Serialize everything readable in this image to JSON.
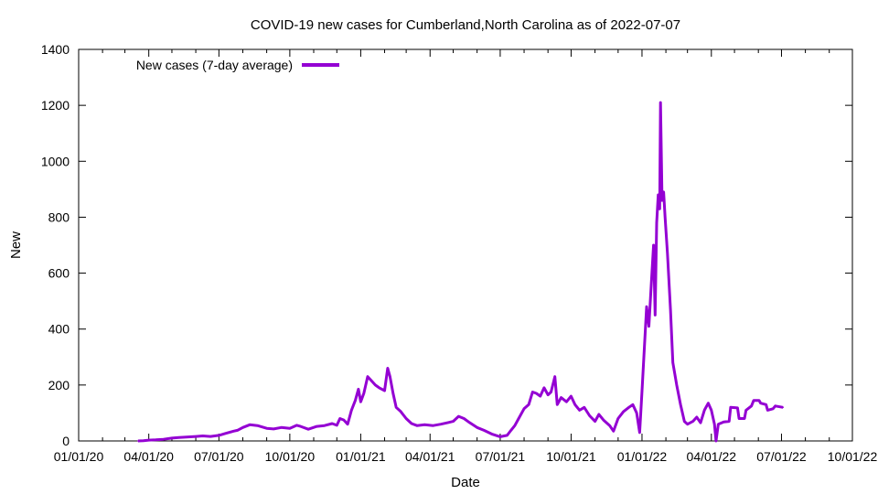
{
  "chart_data": {
    "type": "line",
    "title": "COVID-19 new cases for Cumberland,North Carolina as of 2022-07-07",
    "xlabel": "Date",
    "ylabel": "New",
    "xlim": [
      "2020-01-01",
      "2022-10-01"
    ],
    "ylim": [
      0,
      1400
    ],
    "x_tick_labels": [
      "01/01/20",
      "04/01/20",
      "07/01/20",
      "10/01/20",
      "01/01/21",
      "04/01/21",
      "07/01/21",
      "10/01/21",
      "01/01/22",
      "04/01/22",
      "07/01/22",
      "10/01/22"
    ],
    "y_tick_labels": [
      "0",
      "200",
      "400",
      "600",
      "800",
      "1000",
      "1200",
      "1400"
    ],
    "y_ticks": [
      0,
      200,
      400,
      600,
      800,
      1000,
      1200,
      1400
    ],
    "grid": false,
    "legend_position": "top-left",
    "series": [
      {
        "name": "New cases (7-day average)",
        "color": "#9400d3",
        "points": [
          [
            "2020-03-18",
            0
          ],
          [
            "2020-03-25",
            1
          ],
          [
            "2020-04-01",
            3
          ],
          [
            "2020-04-10",
            4
          ],
          [
            "2020-04-20",
            6
          ],
          [
            "2020-05-01",
            10
          ],
          [
            "2020-05-10",
            12
          ],
          [
            "2020-05-20",
            14
          ],
          [
            "2020-06-01",
            16
          ],
          [
            "2020-06-10",
            18
          ],
          [
            "2020-06-20",
            16
          ],
          [
            "2020-07-01",
            20
          ],
          [
            "2020-07-10",
            27
          ],
          [
            "2020-07-20",
            35
          ],
          [
            "2020-07-25",
            38
          ],
          [
            "2020-08-01",
            48
          ],
          [
            "2020-08-10",
            58
          ],
          [
            "2020-08-20",
            55
          ],
          [
            "2020-09-01",
            45
          ],
          [
            "2020-09-10",
            43
          ],
          [
            "2020-09-20",
            48
          ],
          [
            "2020-10-01",
            45
          ],
          [
            "2020-10-10",
            56
          ],
          [
            "2020-10-15",
            52
          ],
          [
            "2020-10-25",
            42
          ],
          [
            "2020-11-05",
            52
          ],
          [
            "2020-11-15",
            55
          ],
          [
            "2020-11-25",
            62
          ],
          [
            "2020-12-01",
            56
          ],
          [
            "2020-12-05",
            80
          ],
          [
            "2020-12-10",
            75
          ],
          [
            "2020-12-15",
            60
          ],
          [
            "2020-12-20",
            110
          ],
          [
            "2020-12-25",
            145
          ],
          [
            "2020-12-29",
            185
          ],
          [
            "2021-01-01",
            140
          ],
          [
            "2021-01-05",
            170
          ],
          [
            "2021-01-10",
            230
          ],
          [
            "2021-01-15",
            215
          ],
          [
            "2021-01-20",
            200
          ],
          [
            "2021-01-25",
            190
          ],
          [
            "2021-02-01",
            180
          ],
          [
            "2021-02-05",
            260
          ],
          [
            "2021-02-08",
            230
          ],
          [
            "2021-02-12",
            170
          ],
          [
            "2021-02-16",
            120
          ],
          [
            "2021-02-22",
            105
          ],
          [
            "2021-03-01",
            80
          ],
          [
            "2021-03-08",
            62
          ],
          [
            "2021-03-15",
            55
          ],
          [
            "2021-03-25",
            58
          ],
          [
            "2021-04-05",
            55
          ],
          [
            "2021-04-15",
            60
          ],
          [
            "2021-04-25",
            66
          ],
          [
            "2021-05-01",
            70
          ],
          [
            "2021-05-08",
            88
          ],
          [
            "2021-05-15",
            80
          ],
          [
            "2021-05-22",
            66
          ],
          [
            "2021-06-01",
            48
          ],
          [
            "2021-06-10",
            38
          ],
          [
            "2021-06-20",
            25
          ],
          [
            "2021-07-01",
            15
          ],
          [
            "2021-07-10",
            20
          ],
          [
            "2021-07-15",
            38
          ],
          [
            "2021-07-20",
            55
          ],
          [
            "2021-07-25",
            80
          ],
          [
            "2021-08-01",
            115
          ],
          [
            "2021-08-07",
            130
          ],
          [
            "2021-08-12",
            175
          ],
          [
            "2021-08-17",
            170
          ],
          [
            "2021-08-22",
            160
          ],
          [
            "2021-08-27",
            190
          ],
          [
            "2021-09-01",
            165
          ],
          [
            "2021-09-05",
            175
          ],
          [
            "2021-09-10",
            230
          ],
          [
            "2021-09-13",
            130
          ],
          [
            "2021-09-18",
            155
          ],
          [
            "2021-09-25",
            140
          ],
          [
            "2021-10-01",
            160
          ],
          [
            "2021-10-06",
            130
          ],
          [
            "2021-10-12",
            110
          ],
          [
            "2021-10-18",
            120
          ],
          [
            "2021-10-25",
            90
          ],
          [
            "2021-11-01",
            70
          ],
          [
            "2021-11-06",
            95
          ],
          [
            "2021-11-12",
            75
          ],
          [
            "2021-11-20",
            55
          ],
          [
            "2021-11-25",
            35
          ],
          [
            "2021-12-01",
            80
          ],
          [
            "2021-12-08",
            105
          ],
          [
            "2021-12-15",
            120
          ],
          [
            "2021-12-20",
            130
          ],
          [
            "2021-12-25",
            100
          ],
          [
            "2021-12-29",
            30
          ],
          [
            "2022-01-01",
            180
          ],
          [
            "2022-01-04",
            330
          ],
          [
            "2022-01-07",
            480
          ],
          [
            "2022-01-10",
            410
          ],
          [
            "2022-01-13",
            560
          ],
          [
            "2022-01-16",
            700
          ],
          [
            "2022-01-18",
            450
          ],
          [
            "2022-01-20",
            780
          ],
          [
            "2022-01-22",
            880
          ],
          [
            "2022-01-24",
            830
          ],
          [
            "2022-01-25",
            1210
          ],
          [
            "2022-01-27",
            860
          ],
          [
            "2022-01-29",
            890
          ],
          [
            "2022-01-31",
            800
          ],
          [
            "2022-02-03",
            670
          ],
          [
            "2022-02-07",
            470
          ],
          [
            "2022-02-10",
            280
          ],
          [
            "2022-02-15",
            200
          ],
          [
            "2022-02-20",
            130
          ],
          [
            "2022-02-25",
            70
          ],
          [
            "2022-03-01",
            60
          ],
          [
            "2022-03-08",
            70
          ],
          [
            "2022-03-13",
            85
          ],
          [
            "2022-03-18",
            65
          ],
          [
            "2022-03-23",
            110
          ],
          [
            "2022-03-28",
            135
          ],
          [
            "2022-04-01",
            110
          ],
          [
            "2022-04-05",
            60
          ],
          [
            "2022-04-07",
            0
          ],
          [
            "2022-04-10",
            60
          ],
          [
            "2022-04-17",
            68
          ],
          [
            "2022-04-24",
            70
          ],
          [
            "2022-04-26",
            120
          ],
          [
            "2022-05-05",
            118
          ],
          [
            "2022-05-07",
            80
          ],
          [
            "2022-05-14",
            80
          ],
          [
            "2022-05-16",
            110
          ],
          [
            "2022-05-23",
            125
          ],
          [
            "2022-05-26",
            145
          ],
          [
            "2022-06-02",
            145
          ],
          [
            "2022-06-04",
            135
          ],
          [
            "2022-06-11",
            130
          ],
          [
            "2022-06-13",
            110
          ],
          [
            "2022-06-20",
            115
          ],
          [
            "2022-06-23",
            125
          ],
          [
            "2022-07-03",
            120
          ]
        ]
      }
    ]
  }
}
